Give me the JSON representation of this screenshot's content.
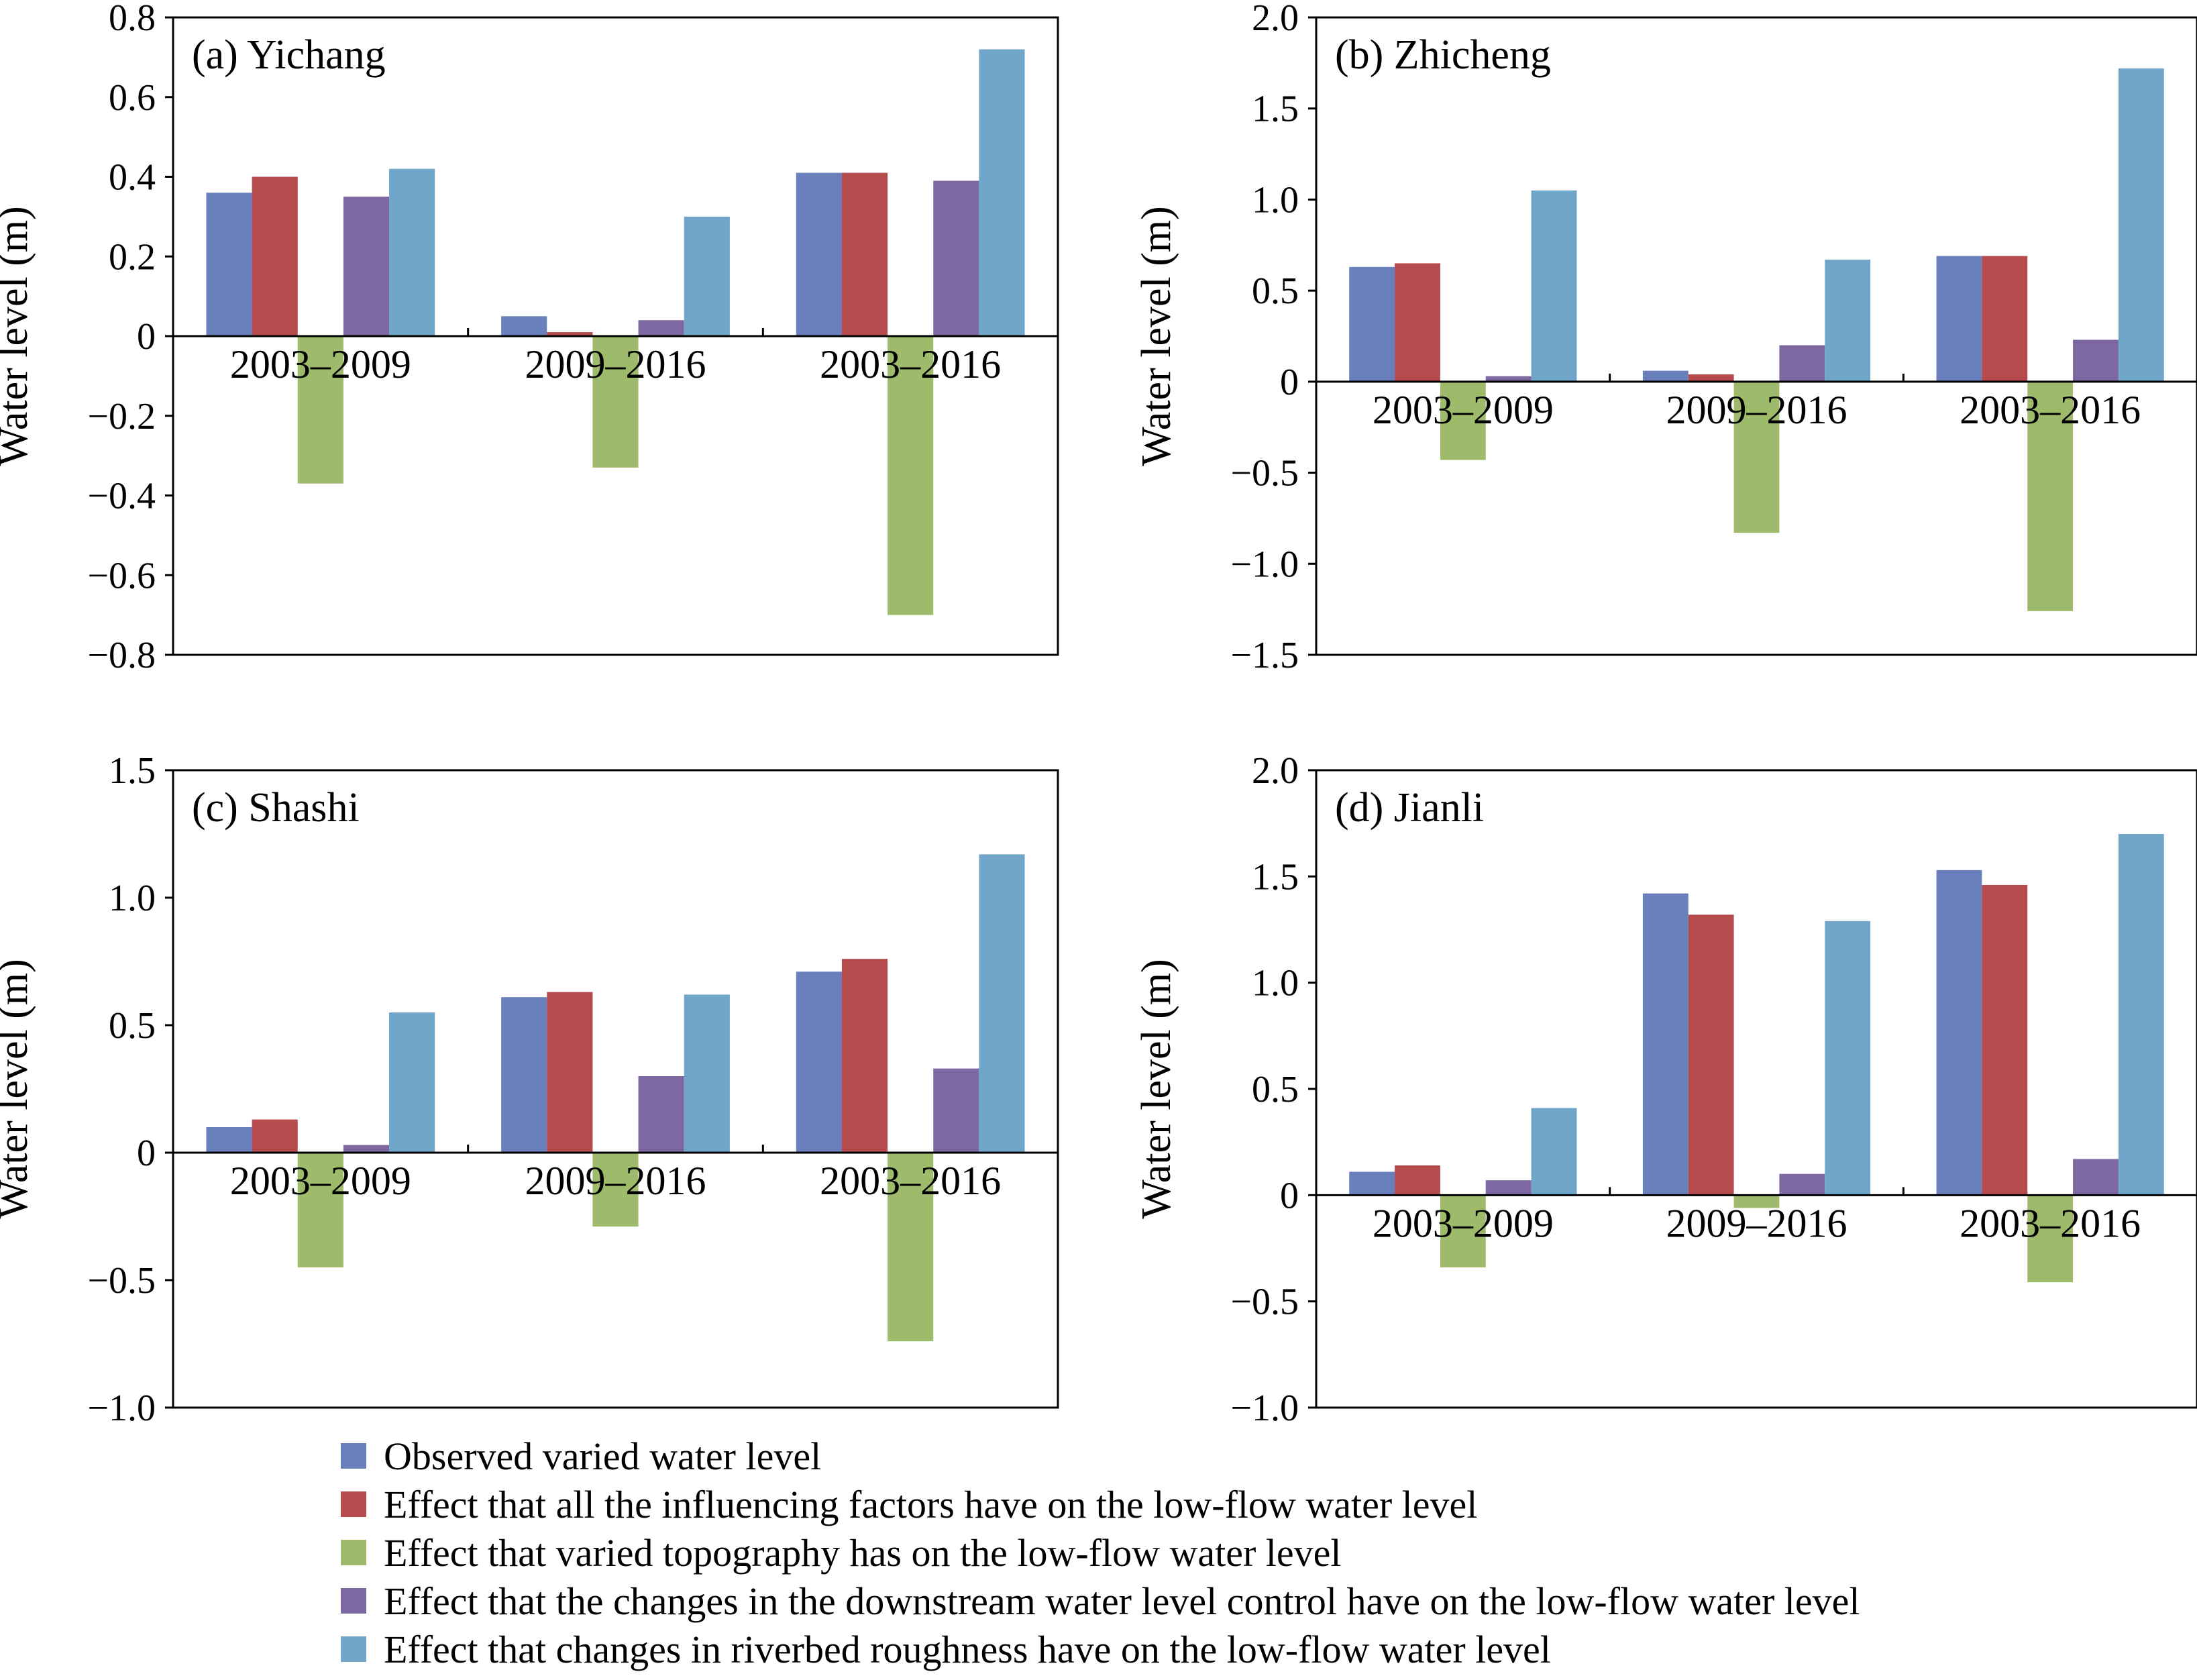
{
  "chart_data": {
    "type": "bar",
    "ylabel": "Water level (m)",
    "categories": [
      "2003–2009",
      "2009–2016",
      "2003–2016"
    ],
    "series_names": [
      "Observed varied water level",
      "Effect that all the influencing factors have on the low-flow water level",
      "Effect that varied topography has on the low-flow water level",
      "Effect that the changes in the downstream water level control have on the low-flow water level",
      "Effect that changes in riverbed roughness have on the low-flow water level"
    ],
    "colors": [
      "#6a80bd",
      "#b64b4e",
      "#9dbb6a",
      "#7d68a2",
      "#6fa6c9"
    ],
    "legend_position": "bottom",
    "grid": false,
    "panels": [
      {
        "title": "(a) Yichang",
        "ylim": [
          -0.8,
          0.8
        ],
        "ticks": [
          -0.8,
          -0.6,
          -0.4,
          -0.2,
          0,
          0.2,
          0.4,
          0.6,
          0.8
        ],
        "tick_labels": [
          "−0.8",
          "−0.6",
          "−0.4",
          "−0.2",
          "0",
          "0.2",
          "0.4",
          "0.6",
          "0.8"
        ],
        "values": [
          [
            0.36,
            0.4,
            -0.37,
            0.35,
            0.42
          ],
          [
            0.05,
            0.01,
            -0.33,
            0.04,
            0.3
          ],
          [
            0.41,
            0.41,
            -0.7,
            0.39,
            0.72
          ]
        ]
      },
      {
        "title": "(b) Zhicheng",
        "ylim": [
          -1.5,
          2.0
        ],
        "ticks": [
          -1.5,
          -1.0,
          -0.5,
          0,
          0.5,
          1.0,
          1.5,
          2.0
        ],
        "tick_labels": [
          "−1.5",
          "−1.0",
          "−0.5",
          "0",
          "0.5",
          "1.0",
          "1.5",
          "2.0"
        ],
        "values": [
          [
            0.63,
            0.65,
            -0.43,
            0.03,
            1.05
          ],
          [
            0.06,
            0.04,
            -0.83,
            0.2,
            0.67
          ],
          [
            0.69,
            0.69,
            -1.26,
            0.23,
            1.72
          ]
        ]
      },
      {
        "title": "(c) Shashi",
        "ylim": [
          -1.0,
          1.5
        ],
        "ticks": [
          -1.0,
          -0.5,
          0,
          0.5,
          1.0,
          1.5
        ],
        "tick_labels": [
          "−1.0",
          "−0.5",
          "0",
          "0.5",
          "1.0",
          "1.5"
        ],
        "values": [
          [
            0.1,
            0.13,
            -0.45,
            0.03,
            0.55
          ],
          [
            0.61,
            0.63,
            -0.29,
            0.3,
            0.62
          ],
          [
            0.71,
            0.76,
            -0.74,
            0.33,
            1.17
          ]
        ]
      },
      {
        "title": "(d) Jianli",
        "ylim": [
          -1.0,
          2.0
        ],
        "ticks": [
          -1.0,
          -0.5,
          0,
          0.5,
          1.0,
          1.5,
          2.0
        ],
        "tick_labels": [
          "−1.0",
          "−0.5",
          "0",
          "0.5",
          "1.0",
          "1.5",
          "2.0"
        ],
        "values": [
          [
            0.11,
            0.14,
            -0.34,
            0.07,
            0.41
          ],
          [
            1.42,
            1.32,
            -0.06,
            0.1,
            1.29
          ],
          [
            1.53,
            1.46,
            -0.41,
            0.17,
            1.7
          ]
        ]
      }
    ]
  }
}
